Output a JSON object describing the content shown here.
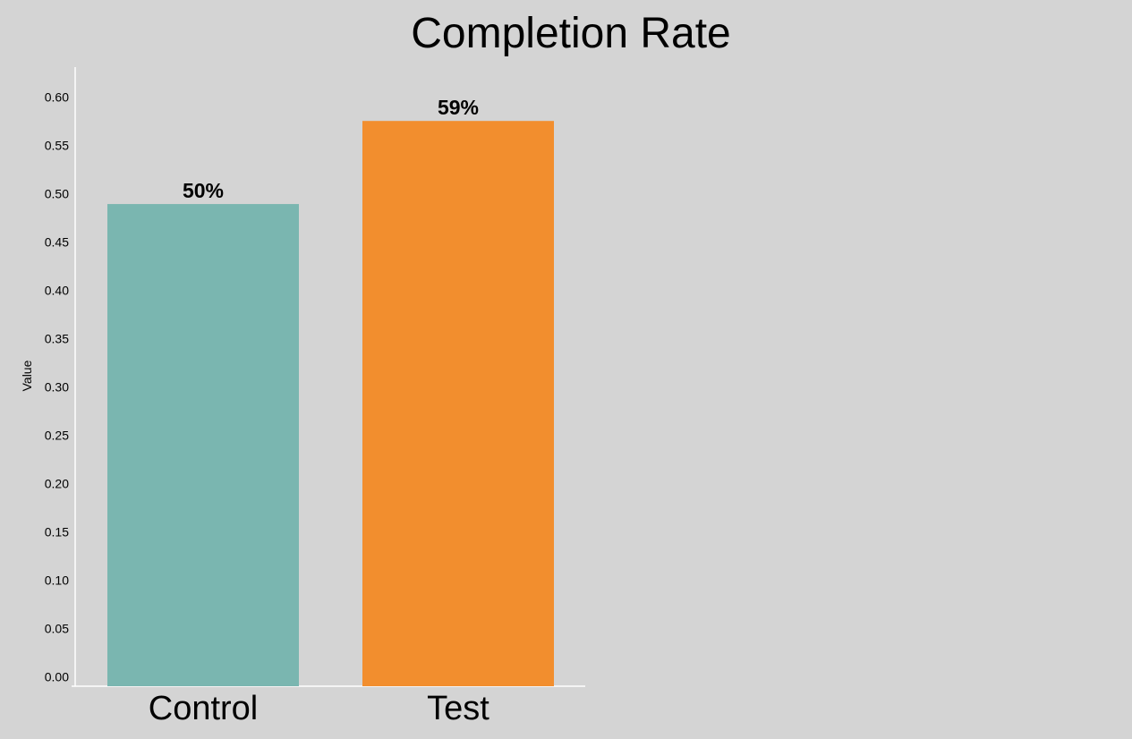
{
  "chart_data": {
    "type": "bar",
    "title": "Completion Rate",
    "xlabel": "",
    "ylabel": "Value",
    "categories": [
      "Control",
      "Test"
    ],
    "values": [
      0.499,
      0.585
    ],
    "data_labels": [
      "50%",
      "59%"
    ],
    "colors": [
      "#7ab6b0",
      "#f28e2e"
    ],
    "ylim": [
      0,
      0.64
    ],
    "yticks": [
      "0.00",
      "0.05",
      "0.10",
      "0.15",
      "0.20",
      "0.25",
      "0.30",
      "0.35",
      "0.40",
      "0.45",
      "0.50",
      "0.55",
      "0.60"
    ],
    "grid": false,
    "legend": "none"
  }
}
